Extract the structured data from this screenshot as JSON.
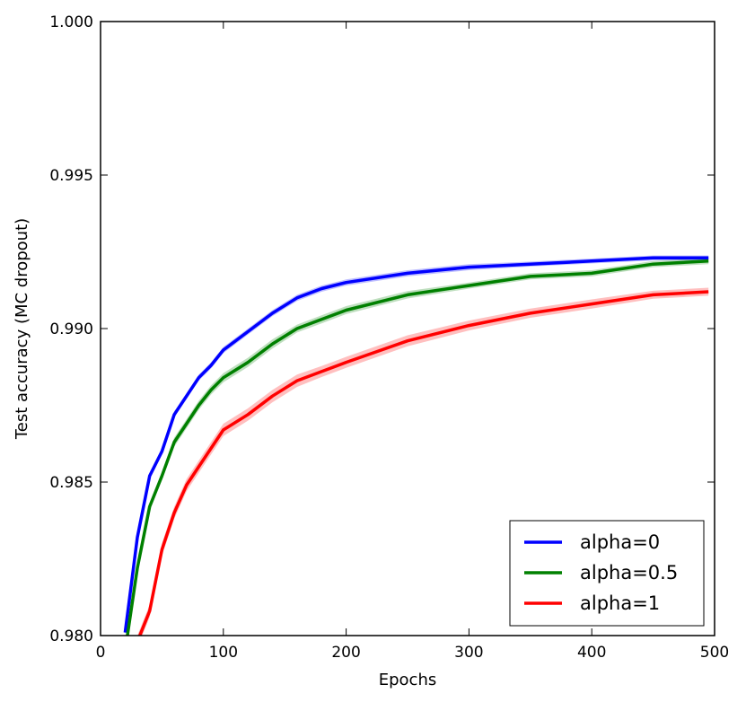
{
  "chart_data": {
    "type": "line",
    "title": "",
    "xlabel": "Epochs",
    "ylabel": "Test accuracy (MC dropout)",
    "xlim": [
      0,
      500
    ],
    "ylim": [
      0.98,
      1.0
    ],
    "xticks": [
      0,
      100,
      200,
      300,
      400,
      500
    ],
    "xtick_labels": [
      "0",
      "100",
      "200",
      "300",
      "400",
      "500"
    ],
    "yticks": [
      0.98,
      0.985,
      0.99,
      0.995,
      1.0
    ],
    "ytick_labels": [
      "0.980",
      "0.985",
      "0.990",
      "0.995",
      "1.000"
    ],
    "grid": false,
    "legend_position": "lower-right",
    "shaded_band": "variability around each line",
    "x": [
      20,
      30,
      40,
      50,
      60,
      70,
      80,
      90,
      100,
      120,
      140,
      160,
      180,
      200,
      250,
      300,
      350,
      400,
      450,
      495
    ],
    "series": [
      {
        "name": "alpha=0",
        "color": "#0000ff",
        "values": [
          0.9801,
          0.9832,
          0.9852,
          0.986,
          0.9872,
          0.9878,
          0.9884,
          0.9888,
          0.9893,
          0.9899,
          0.9905,
          0.991,
          0.9913,
          0.9915,
          0.9918,
          0.992,
          0.9921,
          0.9922,
          0.9923,
          0.9923
        ],
        "band": [
          8e-05,
          8e-05,
          8e-05,
          8e-05,
          0.0001,
          0.0001,
          0.0001,
          0.0001,
          0.0001,
          0.0001,
          0.0001,
          0.0001,
          0.0001,
          0.0001,
          0.0001,
          0.0001,
          8e-05,
          8e-05,
          8e-05,
          8e-05
        ]
      },
      {
        "name": "alpha=0.5",
        "color": "#008000",
        "values": [
          0.9795,
          0.9822,
          0.9842,
          0.9852,
          0.9863,
          0.9869,
          0.9875,
          0.988,
          0.9884,
          0.9889,
          0.9895,
          0.99,
          0.9903,
          0.9906,
          0.9911,
          0.9914,
          0.9917,
          0.9918,
          0.9921,
          0.9922
        ],
        "band": [
          0.0001,
          0.0001,
          0.00012,
          0.00012,
          0.00015,
          0.00015,
          0.00015,
          0.00015,
          0.00015,
          0.00015,
          0.00015,
          0.00013,
          0.00013,
          0.00013,
          0.00012,
          0.0001,
          0.0001,
          0.0001,
          0.0001,
          0.0001
        ]
      },
      {
        "name": "alpha=1",
        "color": "#ff0000",
        "values": [
          0.978,
          0.9798,
          0.9808,
          0.9828,
          0.984,
          0.9849,
          0.9855,
          0.9861,
          0.9867,
          0.9872,
          0.9878,
          0.9883,
          0.9886,
          0.9889,
          0.9896,
          0.9901,
          0.9905,
          0.9908,
          0.9911,
          0.9912
        ],
        "band": [
          0.0002,
          0.0002,
          0.0002,
          0.0002,
          0.0002,
          0.0002,
          0.0002,
          0.0002,
          0.0002,
          0.0002,
          0.0002,
          0.0002,
          0.00018,
          0.00018,
          0.00018,
          0.00016,
          0.00015,
          0.00015,
          0.00013,
          0.00013
        ]
      }
    ]
  }
}
